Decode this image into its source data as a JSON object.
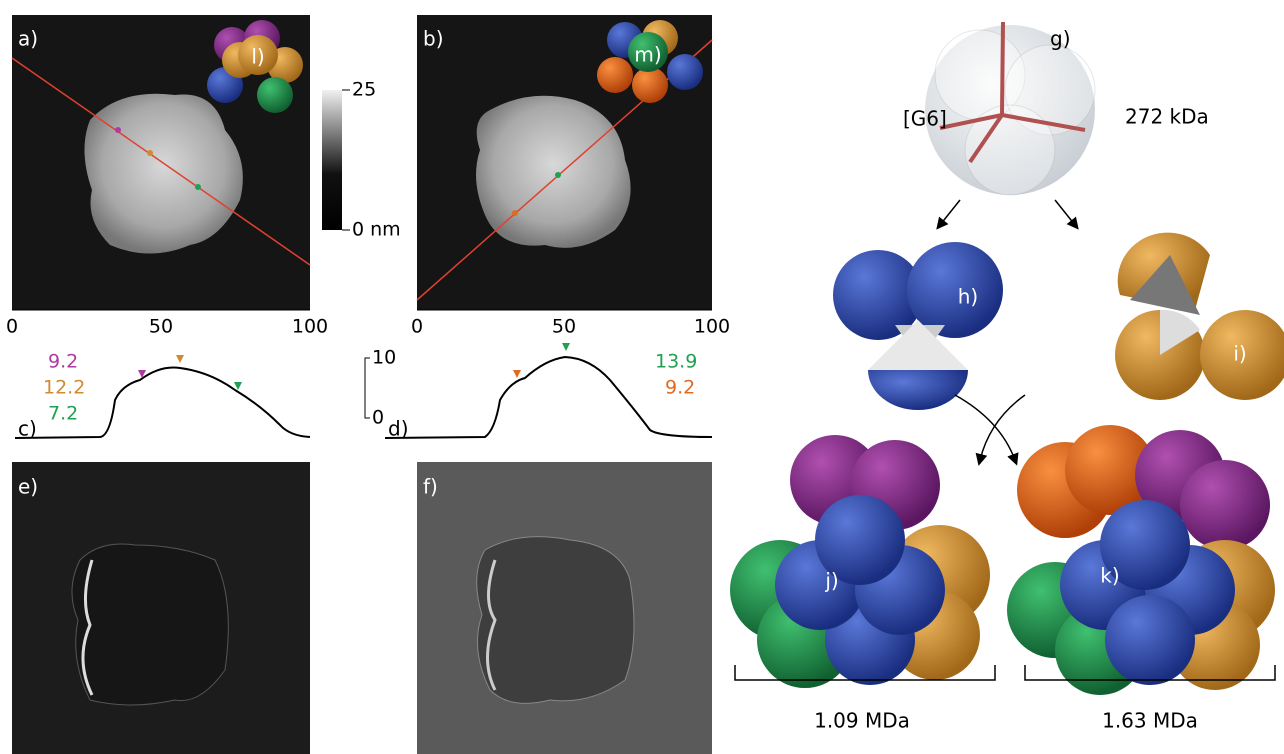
{
  "panels": {
    "a": {
      "label": "a)",
      "inset_label": "l)",
      "x_ticks": [
        "0",
        "50",
        "100"
      ]
    },
    "b": {
      "label": "b)",
      "inset_label": "m)",
      "x_ticks": [
        "0",
        "50",
        "100"
      ]
    },
    "colorbar": {
      "top": "25",
      "bottom": "0 nm"
    },
    "c": {
      "label": "c)",
      "heights": [
        "9.2",
        "12.2",
        "7.2"
      ],
      "scale_top": "10",
      "scale_bottom": "0"
    },
    "d": {
      "label": "d)",
      "heights": [
        "13.9",
        "9.2"
      ]
    },
    "e": {
      "label": "e)"
    },
    "f": {
      "label": "f)"
    },
    "g": {
      "label": "g)",
      "name": "[G6]",
      "mass": "272 kDa"
    },
    "h": {
      "label": "h)"
    },
    "i": {
      "label": "i)"
    },
    "j": {
      "label": "j)",
      "mass": "1.09 MDa"
    },
    "k": {
      "label": "k)",
      "mass": "1.63 MDa"
    }
  }
}
